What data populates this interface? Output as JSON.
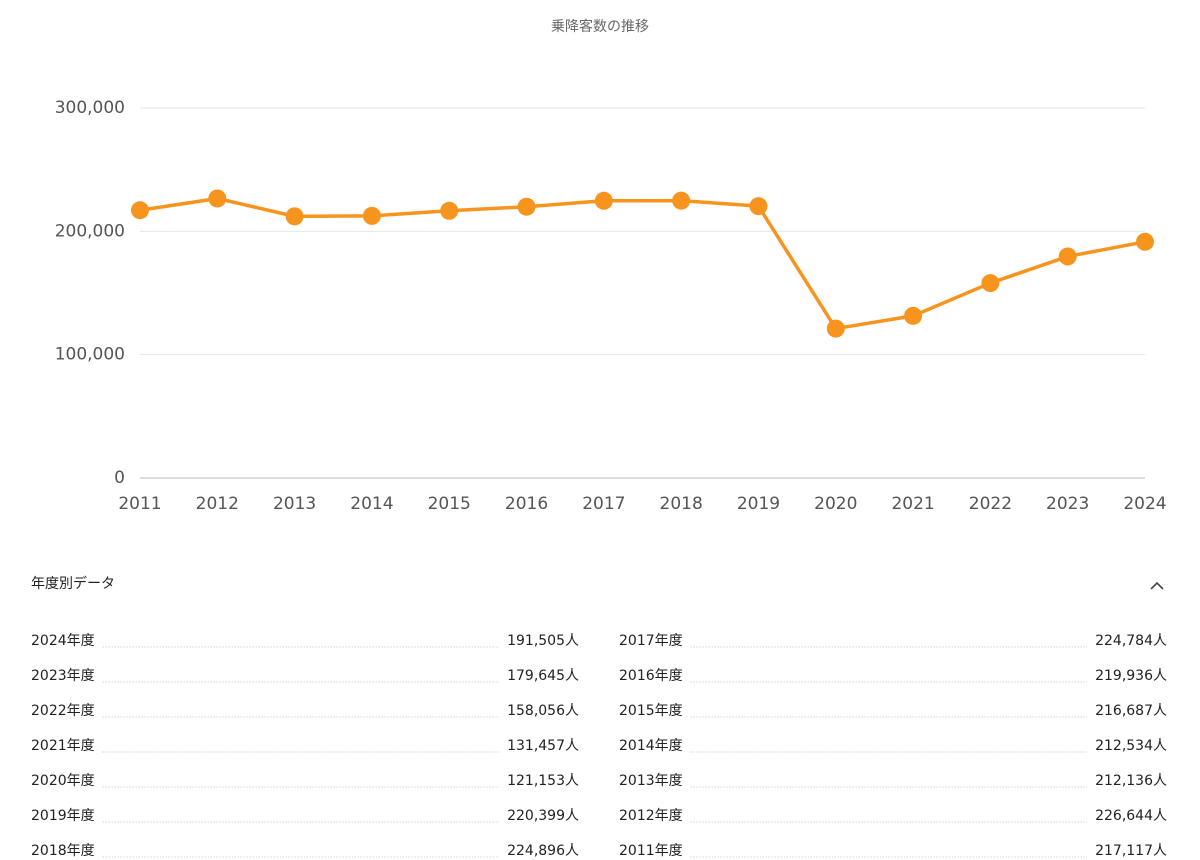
{
  "chart_data": {
    "type": "line",
    "title": "乗降客数の推移",
    "categories": [
      "2011",
      "2012",
      "2013",
      "2014",
      "2015",
      "2016",
      "2017",
      "2018",
      "2019",
      "2020",
      "2021",
      "2022",
      "2023",
      "2024"
    ],
    "values": [
      217117,
      226644,
      212136,
      212534,
      216687,
      219936,
      224784,
      224896,
      220399,
      121153,
      131457,
      158056,
      179645,
      191505
    ],
    "color": "#f7941d",
    "ylim": [
      0,
      300000
    ],
    "yticks": [
      0,
      {
        "value": 100000,
        "label": "100,000"
      },
      {
        "value": 200000,
        "label": "200,000"
      },
      {
        "value": 300000,
        "label": "300,000"
      }
    ],
    "grid": true
  },
  "table": {
    "title": "年度別データ",
    "items": [
      {
        "label": "2024年度",
        "value": "191,505人"
      },
      {
        "label": "2023年度",
        "value": "179,645人"
      },
      {
        "label": "2022年度",
        "value": "158,056人"
      },
      {
        "label": "2021年度",
        "value": "131,457人"
      },
      {
        "label": "2020年度",
        "value": "121,153人"
      },
      {
        "label": "2019年度",
        "value": "220,399人"
      },
      {
        "label": "2018年度",
        "value": "224,896人"
      },
      {
        "label": "2017年度",
        "value": "224,784人"
      },
      {
        "label": "2016年度",
        "value": "219,936人"
      },
      {
        "label": "2015年度",
        "value": "216,687人"
      },
      {
        "label": "2014年度",
        "value": "212,534人"
      },
      {
        "label": "2013年度",
        "value": "212,136人"
      },
      {
        "label": "2012年度",
        "value": "226,644人"
      },
      {
        "label": "2011年度",
        "value": "217,117人"
      }
    ]
  }
}
